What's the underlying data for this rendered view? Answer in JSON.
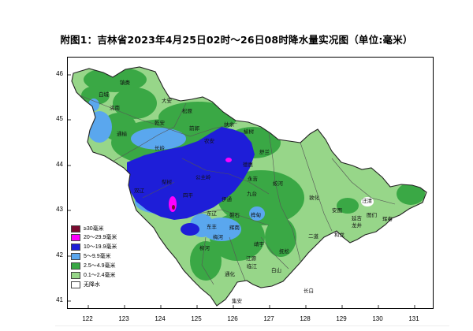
{
  "title": "附图1：吉林省2023年4月25日02时～26日08时降水量实况图（单位:毫米）",
  "axes": {
    "y_ticks": [
      "46",
      "45",
      "44",
      "43",
      "42",
      "41"
    ],
    "x_ticks": [
      "122",
      "123",
      "124",
      "125",
      "126",
      "127",
      "128",
      "129",
      "130",
      "131"
    ]
  },
  "legend": [
    {
      "label": "≥30毫米",
      "color": "#7a0b30"
    },
    {
      "label": "20～29.9毫米",
      "color": "#ff00ff"
    },
    {
      "label": "10～19.9毫米",
      "color": "#1e1ed8"
    },
    {
      "label": "5～9.9毫米",
      "color": "#5aa7ee"
    },
    {
      "label": "2.5～4.9毫米",
      "color": "#3aa845"
    },
    {
      "label": "0.1～2.4毫米",
      "color": "#97d689"
    },
    {
      "label": "无降水",
      "color": "#ffffff"
    }
  ],
  "places": [
    "镇赉",
    "白城",
    "洮南",
    "大安",
    "乾安",
    "松原",
    "扶余",
    "前郭",
    "榆树",
    "农安",
    "长岭",
    "通榆",
    "双辽",
    "梨树",
    "四平",
    "公主岭",
    "伊通",
    "德惠",
    "九台",
    "舒兰",
    "蛟河",
    "敦化",
    "安图",
    "汪清",
    "珲春",
    "图们",
    "延吉",
    "龙井",
    "和龙",
    "桦甸",
    "磐石",
    "东丰",
    "东辽",
    "辉南",
    "梅河",
    "柳河",
    "通化",
    "集安",
    "白山",
    "抚松",
    "靖宇",
    "临江",
    "长白",
    "江源",
    "二道",
    "永吉"
  ]
}
